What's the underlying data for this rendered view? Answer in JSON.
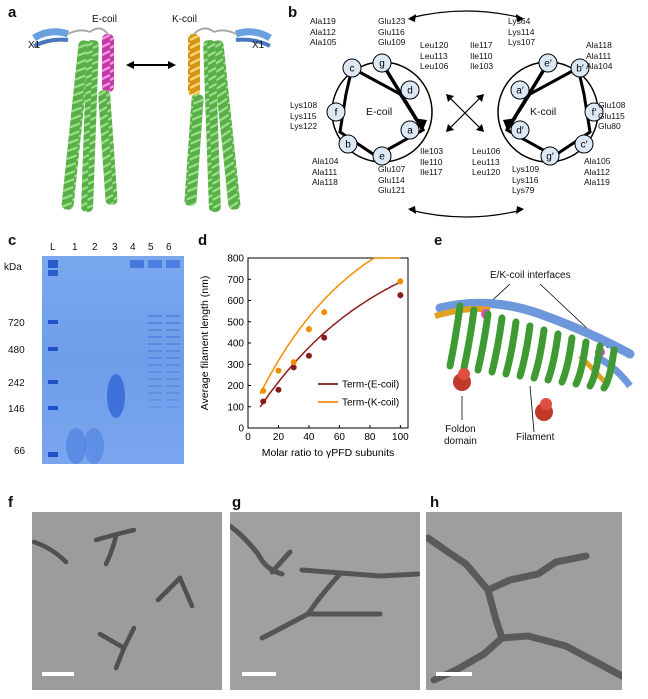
{
  "panels": {
    "a": {
      "letter": "a",
      "labels": {
        "e_coil": "E-coil",
        "k_coil": "K-coil",
        "x1_left": "X1",
        "x1_right": "X1"
      }
    },
    "b": {
      "letter": "b",
      "e_wheel": {
        "title": "E-coil",
        "positions": [
          "c",
          "g",
          "d",
          "f",
          "a",
          "b",
          "e"
        ],
        "residues": {
          "c": "Ala119\nAla112\nAla105",
          "g": "Glu123\nGlu116\nGlu109",
          "d": "Leu120\nLeu113\nLeu106",
          "f": "Lys108\nLys115\nLys122",
          "a": "Ile103\nIle110\nIle117",
          "b": "Ala104\nAla111\nAla118",
          "e": "Glu107\nGlu114\nGlu121"
        }
      },
      "k_wheel": {
        "title": "K-coil",
        "positions": [
          "e′",
          "b′",
          "a′",
          "f′",
          "d′",
          "c′",
          "g′"
        ],
        "residues": {
          "e": "Lys64\nLys114\nLys107",
          "b": "Ala118\nAla111\nAla104",
          "a": "Ile117\nIle110\nIle103",
          "f": "Glu108\nGlu115\nGlu80",
          "d": "Leu106\nLeu113\nLeu120",
          "c": "Ala105\nAla112\nAla119",
          "g": "Lys109\nLys116\nLys79"
        }
      }
    },
    "c": {
      "letter": "c",
      "kda_label": "kDa",
      "lanes": [
        "L",
        "1",
        "2",
        "3",
        "4",
        "5",
        "6"
      ],
      "markers": [
        "720",
        "480",
        "242",
        "146",
        "66"
      ]
    },
    "d": {
      "letter": "d"
    },
    "e": {
      "letter": "e",
      "interfaces_label": "E/K-coil interfaces",
      "foldon_label": "Foldon\ndomain",
      "filament_label": "Filament"
    },
    "f": {
      "letter": "f"
    },
    "g": {
      "letter": "g"
    },
    "h": {
      "letter": "h"
    }
  },
  "chart_data": {
    "type": "scatter",
    "xlabel": "Molar ratio to γPFD subunits",
    "ylabel": "Average filament length (nm)",
    "xlim": [
      0,
      105
    ],
    "ylim": [
      0,
      800
    ],
    "xticks": [
      0,
      20,
      40,
      60,
      80,
      100
    ],
    "yticks": [
      0,
      100,
      200,
      300,
      400,
      500,
      600,
      700,
      800
    ],
    "legend_position": "bottom-right",
    "series": [
      {
        "name": "Term-(E-coil)",
        "color": "#8b1a1a",
        "x": [
          10,
          20,
          30,
          40,
          50,
          100
        ],
        "y": [
          125,
          180,
          285,
          340,
          425,
          625
        ],
        "err": [
          8,
          8,
          10,
          10,
          12,
          15
        ]
      },
      {
        "name": "Term-(K-coil)",
        "color": "#f08c00",
        "x": [
          10,
          20,
          30,
          40,
          50,
          100
        ],
        "y": [
          175,
          270,
          310,
          465,
          545,
          690
        ],
        "err": [
          8,
          8,
          10,
          15,
          15,
          15
        ]
      }
    ]
  },
  "colors": {
    "gel": "#6f9fe8",
    "helix_green": "#6bbf59",
    "e_coil": "#d94fc0",
    "k_coil": "#e0a020",
    "x1_blue": "#5b8fd9",
    "foldon_red": "#c0392b"
  }
}
